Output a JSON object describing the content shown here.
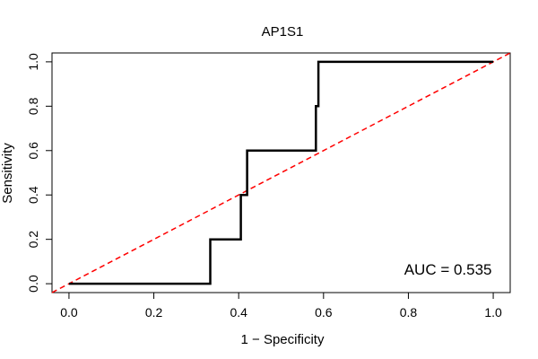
{
  "chart_data": {
    "type": "line",
    "title": "AP1S1",
    "xlabel": "1 − Specificity",
    "ylabel": "Sensitivity",
    "xlim": [
      -0.04,
      1.04
    ],
    "ylim": [
      -0.04,
      1.04
    ],
    "xticks": [
      0.0,
      0.2,
      0.4,
      0.6,
      0.8,
      1.0
    ],
    "yticks": [
      0.0,
      0.2,
      0.4,
      0.6,
      0.8,
      1.0
    ],
    "xtick_labels": [
      "0.0",
      "0.2",
      "0.4",
      "0.6",
      "0.8",
      "1.0"
    ],
    "ytick_labels": [
      "0.0",
      "0.2",
      "0.4",
      "0.6",
      "0.8",
      "1.0"
    ],
    "grid": false,
    "series": [
      {
        "name": "ROC curve",
        "color": "#000000",
        "style": "solid",
        "x": [
          0.0,
          0.333,
          0.333,
          0.405,
          0.405,
          0.42,
          0.42,
          0.582,
          0.582,
          0.588,
          0.588,
          1.0
        ],
        "y": [
          0.0,
          0.0,
          0.2,
          0.2,
          0.4,
          0.4,
          0.6,
          0.6,
          0.8,
          0.8,
          1.0,
          1.0
        ]
      },
      {
        "name": "chance line",
        "color": "#ff0000",
        "style": "dashed",
        "x": [
          -0.04,
          1.04
        ],
        "y": [
          -0.04,
          1.04
        ]
      }
    ],
    "annotations": [
      {
        "text": "AUC = 0.535",
        "x": 0.79,
        "y": 0.04
      }
    ]
  }
}
